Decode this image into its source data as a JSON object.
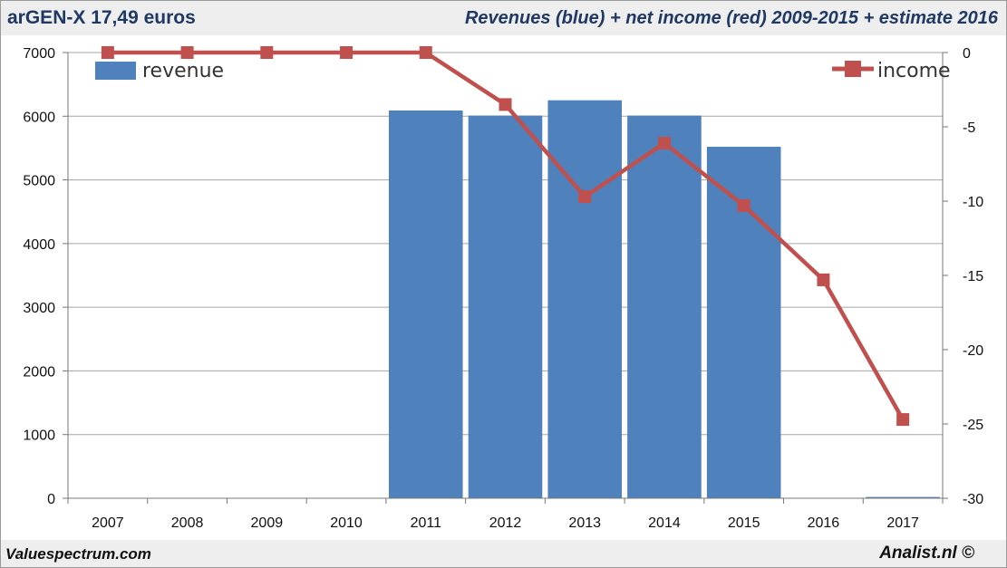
{
  "header": {
    "left_title": "arGEN-X 17,49 euros",
    "right_title": "Revenues (blue) + net income (red) 2009-2015 + estimate 2016"
  },
  "footer": {
    "left": "Valuespectrum.com",
    "right": "Analist.nl ©"
  },
  "colors": {
    "revenue": "#4f81bd",
    "income": "#c0504d",
    "grid": "#a6a6a6"
  },
  "chart_data": {
    "type": "bar+line",
    "categories": [
      "2007",
      "2008",
      "2009",
      "2010",
      "2011",
      "2012",
      "2013",
      "2014",
      "2015",
      "2016",
      "2017"
    ],
    "series": [
      {
        "name": "revenue",
        "type": "bar",
        "axis": "left",
        "values": [
          0,
          0,
          0,
          0,
          6090,
          6010,
          6250,
          6010,
          5520,
          0,
          20
        ]
      },
      {
        "name": "income",
        "type": "line",
        "axis": "right",
        "marker": "square",
        "values": [
          0,
          0,
          0,
          0,
          0,
          -3.5,
          -9.7,
          -6.1,
          -10.3,
          -15.3,
          -24.7
        ]
      }
    ],
    "y_left": {
      "range": [
        0,
        7000
      ],
      "ticks": [
        "0",
        "1000",
        "2000",
        "3000",
        "4000",
        "5000",
        "6000",
        "7000"
      ]
    },
    "y_right": {
      "range": [
        -30,
        0
      ],
      "ticks": [
        "0",
        "-5",
        "-10",
        "-15",
        "-20",
        "-25",
        "-30"
      ]
    },
    "grid": true,
    "legend": [
      {
        "label": "revenue",
        "position": "top-left"
      },
      {
        "label": "income",
        "position": "top-right"
      }
    ]
  }
}
